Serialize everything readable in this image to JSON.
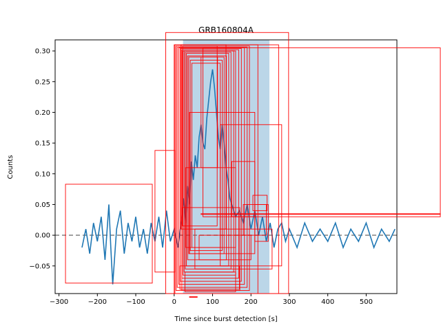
{
  "chart_data": {
    "type": "line",
    "title": "GRB160804A",
    "xlabel": "Time since burst detection [s]",
    "ylabel": "Counts",
    "xlim": [
      -310,
      580
    ],
    "ylim": [
      -0.095,
      0.318
    ],
    "xticks": [
      -300,
      -200,
      -100,
      0,
      100,
      200,
      300,
      400,
      500
    ],
    "yticks": [
      -0.05,
      0.0,
      0.05,
      0.1,
      0.15,
      0.2,
      0.25,
      0.3
    ],
    "xtick_labels": [
      "−300",
      "−200",
      "−100",
      "0",
      "100",
      "200",
      "300",
      "400",
      "500"
    ],
    "ytick_labels": [
      "−0.05",
      "0.00",
      "0.05",
      "0.10",
      "0.15",
      "0.20",
      "0.25",
      "0.30"
    ],
    "baseline": {
      "y": 0.0,
      "style": "dashed",
      "color": "#808080"
    },
    "shaded_interval": {
      "x": [
        23,
        248
      ],
      "color": "#1f77b4",
      "alpha": 0.3
    },
    "series": [
      {
        "color": "#1f77b4",
        "points": [
          [
            -240,
            -0.02
          ],
          [
            -230,
            0.01
          ],
          [
            -220,
            -0.03
          ],
          [
            -210,
            0.02
          ],
          [
            -200,
            -0.01
          ],
          [
            -190,
            0.03
          ],
          [
            -180,
            -0.04
          ],
          [
            -170,
            0.05
          ],
          [
            -165,
            -0.02
          ],
          [
            -160,
            -0.08
          ],
          [
            -150,
            0.01
          ],
          [
            -140,
            0.04
          ],
          [
            -130,
            -0.03
          ],
          [
            -120,
            0.02
          ],
          [
            -110,
            -0.01
          ],
          [
            -100,
            0.03
          ],
          [
            -90,
            -0.02
          ],
          [
            -80,
            0.01
          ],
          [
            -70,
            -0.03
          ],
          [
            -60,
            0.02
          ],
          [
            -50,
            -0.01
          ],
          [
            -40,
            0.03
          ],
          [
            -30,
            -0.02
          ],
          [
            -20,
            0.04
          ],
          [
            -10,
            -0.01
          ],
          [
            0,
            0.01
          ],
          [
            10,
            -0.02
          ],
          [
            20,
            0.03
          ],
          [
            25,
            0.06
          ],
          [
            30,
            0.02
          ],
          [
            35,
            0.08
          ],
          [
            40,
            0.05
          ],
          [
            45,
            0.12
          ],
          [
            50,
            0.09
          ],
          [
            55,
            0.13
          ],
          [
            60,
            0.11
          ],
          [
            65,
            0.16
          ],
          [
            70,
            0.18
          ],
          [
            75,
            0.15
          ],
          [
            80,
            0.14
          ],
          [
            85,
            0.19
          ],
          [
            90,
            0.22
          ],
          [
            95,
            0.25
          ],
          [
            100,
            0.27
          ],
          [
            105,
            0.24
          ],
          [
            110,
            0.2
          ],
          [
            115,
            0.16
          ],
          [
            120,
            0.14
          ],
          [
            125,
            0.18
          ],
          [
            130,
            0.15
          ],
          [
            135,
            0.11
          ],
          [
            140,
            0.09
          ],
          [
            145,
            0.06
          ],
          [
            150,
            0.05
          ],
          [
            160,
            0.03
          ],
          [
            170,
            0.04
          ],
          [
            180,
            0.02
          ],
          [
            190,
            0.05
          ],
          [
            200,
            0.01
          ],
          [
            210,
            0.04
          ],
          [
            220,
            0.0
          ],
          [
            230,
            0.03
          ],
          [
            240,
            -0.01
          ],
          [
            250,
            0.02
          ],
          [
            260,
            -0.02
          ],
          [
            270,
            0.01
          ],
          [
            280,
            0.02
          ],
          [
            290,
            -0.01
          ],
          [
            300,
            0.01
          ],
          [
            320,
            -0.02
          ],
          [
            340,
            0.02
          ],
          [
            360,
            -0.01
          ],
          [
            380,
            0.01
          ],
          [
            400,
            -0.01
          ],
          [
            420,
            0.02
          ],
          [
            440,
            -0.02
          ],
          [
            460,
            0.01
          ],
          [
            480,
            -0.01
          ],
          [
            500,
            0.02
          ],
          [
            520,
            -0.02
          ],
          [
            540,
            0.01
          ],
          [
            560,
            -0.01
          ],
          [
            575,
            0.01
          ]
        ]
      }
    ],
    "annotation_boxes": {
      "color": "#ff0000",
      "data_boxes": [
        [
          -283,
          -0.078,
          -57,
          0.083
        ],
        [
          -50,
          -0.06,
          2,
          0.138
        ],
        [
          -22,
          -0.095,
          298,
          0.33
        ],
        [
          0,
          -0.095,
          272,
          0.31
        ],
        [
          2,
          -0.095,
          218,
          0.31
        ],
        [
          5,
          -0.09,
          196,
          0.308
        ],
        [
          8,
          -0.085,
          190,
          0.306
        ],
        [
          12,
          -0.08,
          183,
          0.305
        ],
        [
          16,
          -0.075,
          175,
          0.304
        ],
        [
          20,
          -0.07,
          168,
          0.302
        ],
        [
          23,
          -0.065,
          160,
          0.3
        ],
        [
          26,
          -0.06,
          155,
          0.3
        ],
        [
          29,
          -0.055,
          148,
          0.298
        ],
        [
          32,
          -0.05,
          142,
          0.296
        ],
        [
          35,
          -0.04,
          136,
          0.292
        ],
        [
          38,
          -0.03,
          130,
          0.29
        ],
        [
          42,
          -0.025,
          125,
          0.285
        ],
        [
          46,
          -0.02,
          120,
          0.28
        ],
        [
          18,
          0.01,
          135,
          0.31
        ],
        [
          22,
          0.015,
          112,
          0.308
        ],
        [
          70,
          0.11,
          113,
          0.29
        ],
        [
          20,
          -0.09,
          171,
          0.045
        ],
        [
          40,
          -0.03,
          210,
          0.2
        ],
        [
          54,
          -0.055,
          255,
          0.01
        ],
        [
          120,
          -0.05,
          280,
          0.18
        ],
        [
          150,
          0.03,
          210,
          0.12
        ],
        [
          180,
          0.0,
          240,
          0.05
        ],
        [
          205,
          0.04,
          242,
          0.065
        ],
        [
          210,
          -0.01,
          245,
          0.05
        ],
        [
          75,
          0.03,
          720,
          0.305
        ],
        [
          70,
          0.04,
          720,
          0.035
        ],
        [
          30,
          -0.02,
          160,
          0.11
        ],
        [
          65,
          -0.04,
          200,
          0.0
        ],
        [
          28,
          -0.092,
          160,
          -0.06
        ],
        [
          15,
          -0.088,
          170,
          -0.05
        ],
        [
          40,
          -0.095,
          60,
          -0.1
        ]
      ]
    }
  }
}
